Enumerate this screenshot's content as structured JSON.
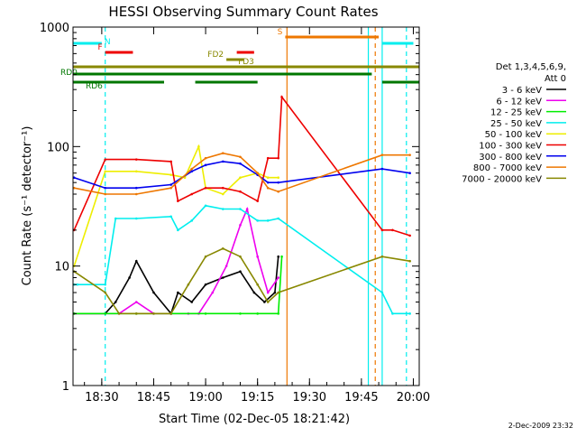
{
  "chart_data": {
    "type": "line",
    "title": "HESSI Observing Summary Count Rates",
    "xlabel": "Start Time (02-Dec-05 18:21:42)",
    "ylabel": "Count Rate (s⁻¹ detector⁻¹)",
    "y_scale": "log",
    "ylim": [
      1,
      1000
    ],
    "xlim": [
      "18:21:42",
      "20:01:42"
    ],
    "x_ticks": [
      "18:30",
      "18:45",
      "19:00",
      "19:15",
      "19:30",
      "19:45",
      "20:00"
    ],
    "y_ticks": [
      "1",
      "10",
      "100",
      "1000"
    ],
    "grid": false,
    "legend_position": "right",
    "legend_header": [
      "Det 1,3,4,5,6,9,",
      "Att 0"
    ],
    "footer": "2-Dec-2009 23:32",
    "series": [
      {
        "name": "3 - 6 keV",
        "color": "#000000",
        "x": [
          "18:22",
          "18:31",
          "18:34",
          "18:38",
          "18:40",
          "18:45",
          "18:50",
          "18:52",
          "18:56",
          "19:00",
          "19:05",
          "19:10",
          "19:14",
          "19:17",
          "19:20",
          "19:21"
        ],
        "y": [
          4,
          4,
          5,
          8,
          11,
          6,
          4,
          6,
          5,
          7,
          8,
          9,
          6,
          5,
          6,
          12
        ]
      },
      {
        "name": "6 - 12 keV",
        "color": "#ee00ee",
        "x": [
          "18:22",
          "18:31",
          "18:35",
          "18:40",
          "18:45",
          "18:50",
          "18:55",
          "18:58",
          "19:02",
          "19:06",
          "19:10",
          "19:12",
          "19:15",
          "19:18",
          "19:21"
        ],
        "y": [
          4,
          4,
          4,
          5,
          4,
          4,
          4,
          4,
          6,
          10,
          22,
          30,
          12,
          6,
          8
        ]
      },
      {
        "name": "12 - 25 keV",
        "color": "#00ee00",
        "x": [
          "18:22",
          "18:31",
          "18:40",
          "18:50",
          "19:00",
          "19:10",
          "19:15",
          "19:21",
          "19:22"
        ],
        "y": [
          4,
          4,
          4,
          4,
          4,
          4,
          4,
          4,
          12
        ]
      },
      {
        "name": "25 - 50 keV",
        "color": "#00eeee",
        "x": [
          "18:22",
          "18:23",
          "18:31",
          "18:34",
          "18:40",
          "18:50",
          "18:52",
          "18:56",
          "19:00",
          "19:05",
          "19:10",
          "19:15",
          "19:18",
          "19:21",
          "19:51",
          "19:54",
          "19:59"
        ],
        "y": [
          7,
          7,
          7,
          25,
          25,
          26,
          20,
          24,
          32,
          30,
          30,
          24,
          24,
          25,
          6,
          4,
          4
        ]
      },
      {
        "name": "50 - 100 keV",
        "color": "#eeee00",
        "x": [
          "18:22",
          "18:31",
          "18:40",
          "18:50",
          "18:54",
          "18:58",
          "19:00",
          "19:05",
          "19:10",
          "19:15",
          "19:18",
          "19:21"
        ],
        "y": [
          10,
          62,
          62,
          58,
          55,
          100,
          45,
          40,
          55,
          60,
          55,
          55
        ]
      },
      {
        "name": "100 - 300 keV",
        "color": "#ee0000",
        "x": [
          "18:22",
          "18:31",
          "18:40",
          "18:50",
          "18:52",
          "18:56",
          "19:00",
          "19:05",
          "19:10",
          "19:15",
          "19:18",
          "19:21",
          "19:22",
          "19:51",
          "19:54",
          "19:59"
        ],
        "y": [
          20,
          78,
          78,
          75,
          35,
          40,
          45,
          45,
          42,
          35,
          80,
          80,
          260,
          20,
          20,
          18
        ]
      },
      {
        "name": "300 - 800 keV",
        "color": "#0000ee",
        "x": [
          "18:22",
          "18:31",
          "18:40",
          "18:50",
          "18:56",
          "19:00",
          "19:05",
          "19:10",
          "19:15",
          "19:18",
          "19:21",
          "19:51",
          "19:59"
        ],
        "y": [
          55,
          45,
          45,
          48,
          62,
          70,
          75,
          72,
          58,
          50,
          50,
          65,
          60
        ]
      },
      {
        "name": "800 - 7000 keV",
        "color": "#ee7700",
        "x": [
          "18:22",
          "18:31",
          "18:40",
          "18:50",
          "18:56",
          "19:00",
          "19:05",
          "19:10",
          "19:15",
          "19:18",
          "19:21",
          "19:51",
          "19:59"
        ],
        "y": [
          45,
          40,
          40,
          45,
          65,
          80,
          88,
          82,
          60,
          45,
          42,
          85,
          85
        ]
      },
      {
        "name": "7000 - 20000 keV",
        "color": "#888800",
        "x": [
          "18:22",
          "18:31",
          "18:35",
          "18:40",
          "18:45",
          "18:50",
          "18:55",
          "19:00",
          "19:05",
          "19:10",
          "19:15",
          "19:18",
          "19:21",
          "19:51",
          "19:59"
        ],
        "y": [
          9,
          6,
          4,
          4,
          4,
          4,
          7,
          12,
          14,
          12,
          7,
          5,
          6,
          12,
          11
        ]
      }
    ],
    "flag_bars": [
      {
        "label": "N",
        "color": "#00eeee",
        "segments": [
          [
            "18:21:42",
            "18:30:00"
          ],
          [
            "19:51:00",
            "20:00:00"
          ]
        ]
      },
      {
        "label": "F",
        "color": "#ee0000",
        "segments": [
          [
            "18:31:00",
            "18:39:00"
          ],
          [
            "19:09:00",
            "19:14:00"
          ]
        ]
      },
      {
        "label": "S",
        "color": "#ee7700",
        "segments": [
          [
            "19:23:00",
            "19:50:00"
          ]
        ]
      },
      {
        "label": "FD2",
        "color": "#888800",
        "segments": [
          [
            "19:06:00",
            "19:11:00"
          ]
        ]
      },
      {
        "label": "FD3",
        "color": "#888800",
        "segments": [
          [
            "18:21:42",
            "20:01:42"
          ]
        ]
      },
      {
        "label": "RD0",
        "color": "#007700",
        "segments": [
          [
            "18:21:42",
            "19:48:00"
          ]
        ]
      },
      {
        "label": "RD6",
        "color": "#007700",
        "segments": [
          [
            "18:21:42",
            "18:48:00"
          ],
          [
            "18:57:00",
            "19:15:00"
          ],
          [
            "19:51:00",
            "20:01:42"
          ]
        ]
      }
    ],
    "vertical_markers": [
      {
        "x": "18:31",
        "color": "#00eeee",
        "style": "dashed"
      },
      {
        "x": "19:23:30",
        "color": "#ee7700",
        "style": "solid"
      },
      {
        "x": "19:47",
        "color": "#00eeee",
        "style": "solid"
      },
      {
        "x": "19:49",
        "color": "#ee7700",
        "style": "dashed"
      },
      {
        "x": "19:51",
        "color": "#00eeee",
        "style": "solid"
      },
      {
        "x": "19:58",
        "color": "#00eeee",
        "style": "dashed"
      }
    ]
  }
}
